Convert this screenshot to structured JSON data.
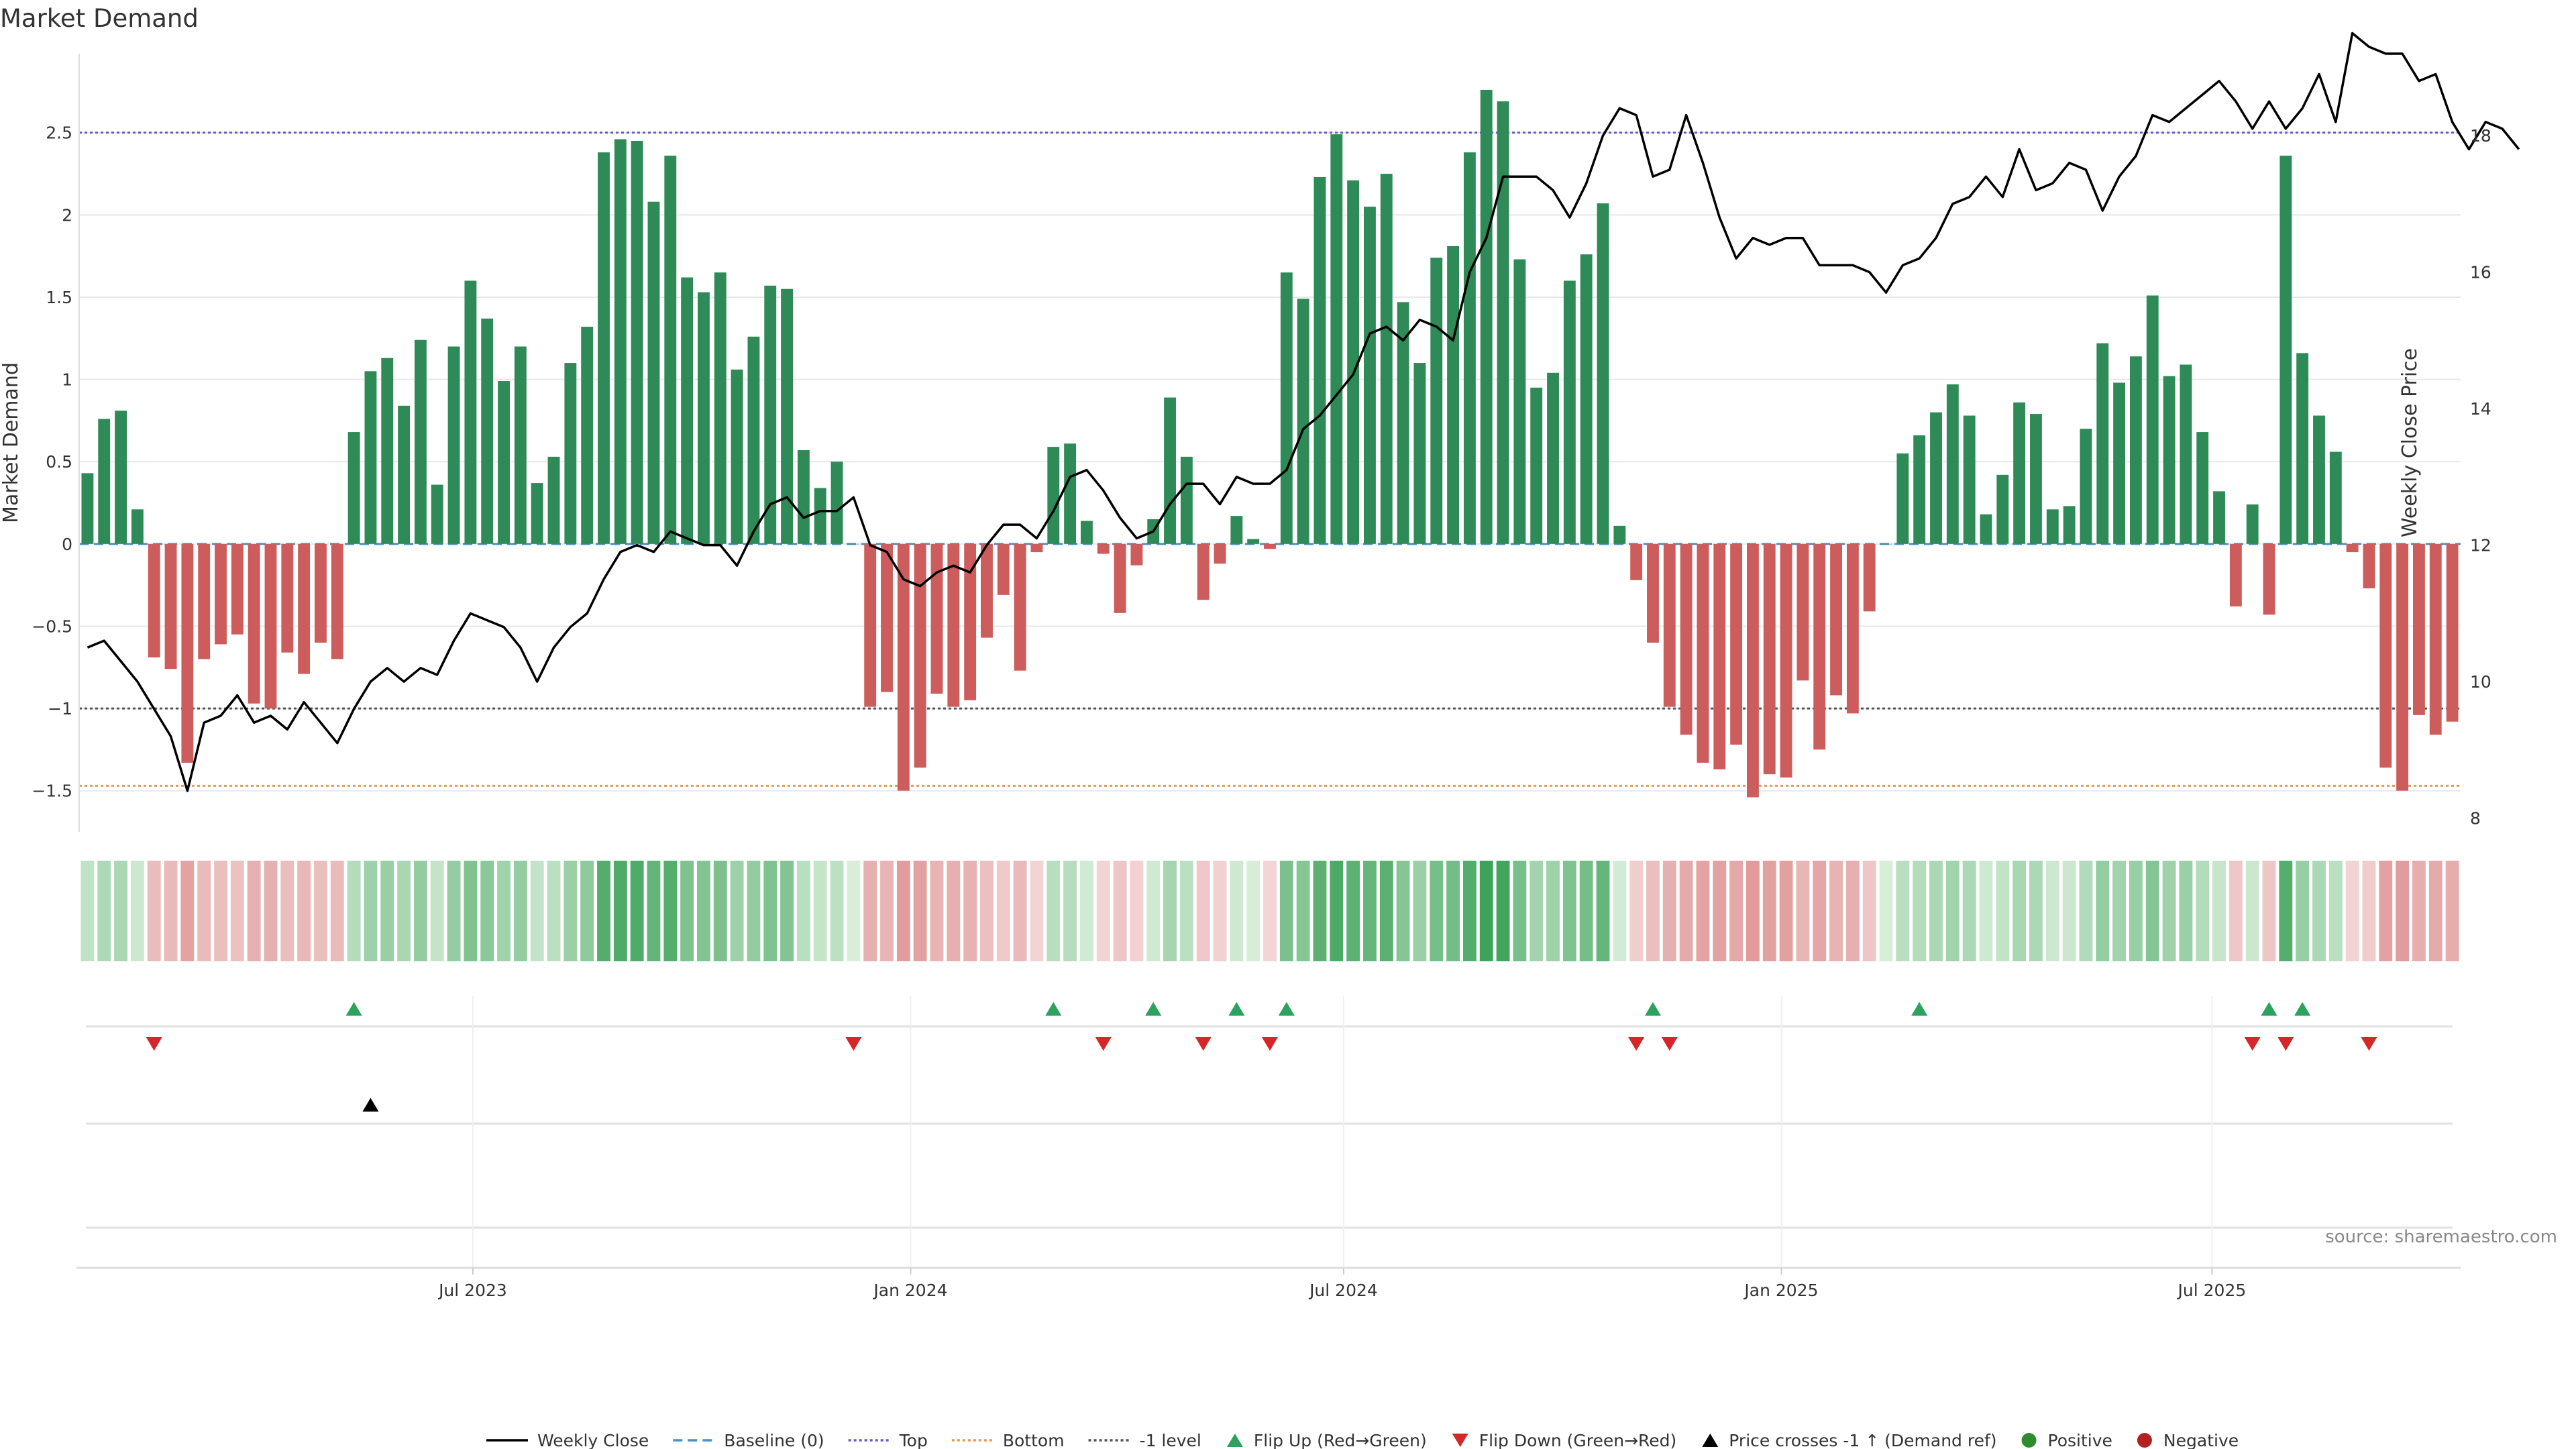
{
  "chart_data": {
    "type": "bar",
    "title": "Market Demand",
    "ylabel": "Market Demand",
    "y2label": "Weekly Close Price",
    "source": "source: sharemaestro.com",
    "ylim": [
      -1.75,
      2.98
    ],
    "y2lim": [
      7.8,
      19.2
    ],
    "yticks": [
      -1.5,
      -1,
      -0.5,
      0,
      0.5,
      1,
      1.5,
      2,
      2.5
    ],
    "ytick_labels": [
      "−1.5",
      "−1",
      "−0.5",
      "0",
      "0.5",
      "1",
      "1.5",
      "2",
      "2.5"
    ],
    "y2ticks": [
      8,
      10,
      12,
      14,
      16,
      18
    ],
    "y2tick_labels": [
      "8",
      "10",
      "12",
      "14",
      "16",
      "18"
    ],
    "levels": {
      "top": 2.5,
      "bottom": -1.47,
      "minus_one": -1,
      "baseline": 0
    },
    "x_start": "2023-01-20",
    "x_step_days": 7,
    "xticks": [
      {
        "date": "2023-07-01",
        "label": "Jul 2023"
      },
      {
        "date": "2024-01-01",
        "label": "Jan 2024"
      },
      {
        "date": "2024-07-01",
        "label": "Jul 2024"
      },
      {
        "date": "2025-01-01",
        "label": "Jan 2025"
      },
      {
        "date": "2025-07-01",
        "label": "Jul 2025"
      }
    ],
    "grid": true,
    "legend_position": "bottom",
    "colors": {
      "positive": "#2e8b57",
      "negative": "#cd5c5c",
      "price": "#000000",
      "top": "#6a5acd",
      "bottom": "#e89b4c",
      "minus_one": "#555555",
      "baseline": "#4a90c8",
      "flip_up": "#2ca25f",
      "flip_down": "#d62728",
      "cross": "#000000",
      "positive_dot": "#2e8b2e",
      "negative_dot": "#b22222",
      "grid": "#e8e8e8"
    },
    "series": [
      {
        "name": "Market Demand",
        "values": [
          0.43,
          0.76,
          0.81,
          0.21,
          -0.69,
          -0.76,
          -1.33,
          -0.7,
          -0.61,
          -0.55,
          -0.97,
          -1.0,
          -0.66,
          -0.79,
          -0.6,
          -0.7,
          0.68,
          1.05,
          1.13,
          0.84,
          1.24,
          0.36,
          1.2,
          1.6,
          1.37,
          0.99,
          1.2,
          0.37,
          0.53,
          1.1,
          1.32,
          2.38,
          2.46,
          2.45,
          2.08,
          2.36,
          1.62,
          1.53,
          1.65,
          1.06,
          1.26,
          1.57,
          1.55,
          0.57,
          0.34,
          0.5,
          0.0,
          -0.99,
          -0.9,
          -1.5,
          -1.36,
          -0.91,
          -0.99,
          -0.95,
          -0.57,
          -0.31,
          -0.77,
          -0.05,
          0.59,
          0.61,
          0.14,
          -0.06,
          -0.42,
          -0.13,
          0.15,
          0.89,
          0.53,
          -0.34,
          -0.12,
          0.17,
          0.03,
          -0.03,
          1.65,
          1.49,
          2.23,
          2.49,
          2.21,
          2.05,
          2.25,
          1.47,
          1.1,
          1.74,
          1.81,
          2.38,
          2.76,
          2.69,
          1.73,
          0.95,
          1.04,
          1.6,
          1.76,
          2.07,
          0.11,
          -0.22,
          -0.6,
          -0.99,
          -1.16,
          -1.33,
          -1.37,
          -1.22,
          -1.54,
          -1.4,
          -1.42,
          -0.83,
          -1.25,
          -0.92,
          -1.03,
          -0.41,
          0.0,
          0.55,
          0.66,
          0.8,
          0.97,
          0.78,
          0.18,
          0.42,
          0.86,
          0.79,
          0.21,
          0.23,
          0.7,
          1.22,
          0.98,
          1.14,
          1.51,
          1.02,
          1.09,
          0.68,
          0.32,
          -0.38,
          0.24,
          -0.43,
          2.36,
          1.16,
          0.78,
          0.56,
          -0.05,
          -0.27,
          -1.36,
          -1.5,
          -1.04,
          -1.16,
          -1.08
        ]
      },
      {
        "name": "Weekly Close",
        "values": [
          10.5,
          10.6,
          10.3,
          10.0,
          9.6,
          9.2,
          8.4,
          9.4,
          9.5,
          9.8,
          9.4,
          9.5,
          9.3,
          9.7,
          9.4,
          9.1,
          9.6,
          10.0,
          10.2,
          10.0,
          10.2,
          10.1,
          10.6,
          11.0,
          10.9,
          10.8,
          10.5,
          10.0,
          10.5,
          10.8,
          11.0,
          11.5,
          11.9,
          12.0,
          11.9,
          12.2,
          12.1,
          12.0,
          12.0,
          11.7,
          12.2,
          12.6,
          12.7,
          12.4,
          12.5,
          12.5,
          12.7,
          12.0,
          11.9,
          11.5,
          11.4,
          11.6,
          11.7,
          11.6,
          12.0,
          12.3,
          12.3,
          12.1,
          12.5,
          13.0,
          13.1,
          12.8,
          12.4,
          12.1,
          12.2,
          12.6,
          12.9,
          12.9,
          12.6,
          13.0,
          12.9,
          12.9,
          13.1,
          13.7,
          13.9,
          14.2,
          14.5,
          15.1,
          15.2,
          15.0,
          15.3,
          15.2,
          15.0,
          16.0,
          16.5,
          17.4,
          17.4,
          17.4,
          17.2,
          16.8,
          17.3,
          18.0,
          18.4,
          18.3,
          17.4,
          17.5,
          18.3,
          17.6,
          16.8,
          16.2,
          16.5,
          16.4,
          16.5,
          16.5,
          16.1,
          16.1,
          16.1,
          16.0,
          15.7,
          16.1,
          16.2,
          16.5,
          17.0,
          17.1,
          17.4,
          17.1,
          17.8,
          17.2,
          17.3,
          17.6,
          17.5,
          16.9,
          17.4,
          17.7,
          18.3,
          18.2,
          18.4,
          18.6,
          18.8,
          18.5,
          18.1,
          18.5,
          18.1,
          18.4,
          18.9,
          18.2,
          19.5,
          19.3,
          19.2,
          19.2,
          18.8,
          18.9,
          18.2,
          17.8,
          18.2,
          18.1,
          17.8
        ]
      }
    ],
    "flip_up_indices": [
      16,
      58,
      64,
      69,
      72,
      94,
      110,
      131,
      133
    ],
    "flip_down_indices": [
      4,
      46,
      61,
      67,
      71,
      93,
      95,
      130,
      132,
      137
    ],
    "price_cross_indices": [
      17
    ],
    "legend": [
      {
        "kind": "line-solid",
        "label": "Weekly Close"
      },
      {
        "kind": "line-dash",
        "label": "Baseline (0)"
      },
      {
        "kind": "line-dot-top",
        "label": "Top"
      },
      {
        "kind": "line-dot-bottom",
        "label": "Bottom"
      },
      {
        "kind": "line-dot-minus",
        "label": "-1 level"
      },
      {
        "kind": "tri-up-green",
        "label": "Flip Up (Red→Green)"
      },
      {
        "kind": "tri-down-red",
        "label": "Flip Down (Green→Red)"
      },
      {
        "kind": "tri-up-black",
        "label": "Price crosses -1 ↑ (Demand ref)"
      },
      {
        "kind": "dot-green",
        "label": "Positive"
      },
      {
        "kind": "dot-red",
        "label": "Negative"
      }
    ]
  }
}
